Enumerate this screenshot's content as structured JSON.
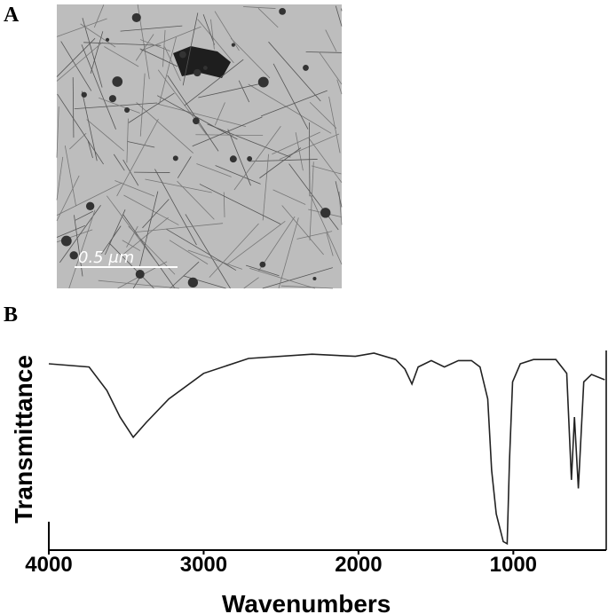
{
  "panel_labels": [
    "A",
    "B"
  ],
  "image": {
    "scale_bar": "0.5 μm"
  },
  "chart_data": {
    "type": "line",
    "xlabel": "Wavenumbers",
    "ylabel": "Transmittance",
    "x": [
      4000,
      3740,
      3625,
      3540,
      3455,
      3370,
      3225,
      3000,
      2710,
      2300,
      2020,
      1900,
      1760,
      1700,
      1655,
      1615,
      1530,
      1445,
      1355,
      1270,
      1215,
      1165,
      1140,
      1110,
      1065,
      1040,
      1025,
      1005,
      955,
      870,
      725,
      655,
      625,
      605,
      580,
      545,
      495,
      410
    ],
    "values": [
      87.5,
      86,
      75,
      62.5,
      53,
      60,
      71,
      83,
      90,
      92,
      91,
      92.5,
      89.5,
      85,
      78,
      86,
      89,
      86,
      89,
      89,
      86,
      71,
      37.5,
      17,
      4,
      3,
      42,
      79,
      87.5,
      89.5,
      89.5,
      83,
      33,
      62.5,
      29,
      79,
      82.5,
      80
    ],
    "color": "#222222",
    "xlim": [
      4000,
      400
    ],
    "ylim": [
      0,
      100
    ],
    "xticks": [
      4000,
      3000,
      2000,
      1000
    ]
  }
}
